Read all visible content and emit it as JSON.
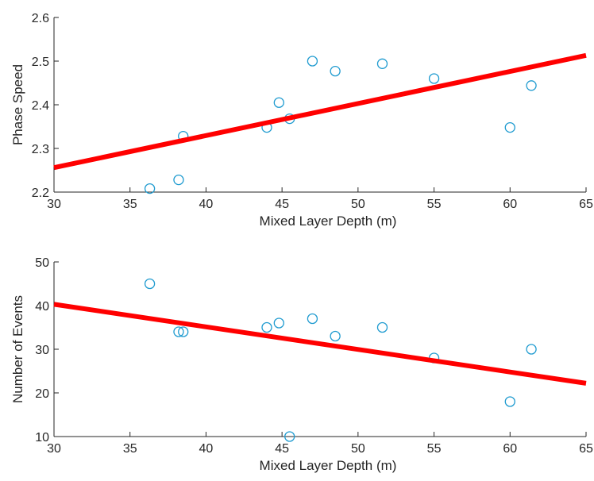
{
  "colors": {
    "marker": "#1f9bd0",
    "fit_line": "#ff0000",
    "axis": "#262626",
    "background": "#ffffff"
  },
  "chart_data": [
    {
      "type": "scatter",
      "xlabel": "Mixed Layer Depth (m)",
      "ylabel": "Phase Speed",
      "xlim": [
        30,
        65
      ],
      "ylim": [
        2.2,
        2.6
      ],
      "xticks": [
        30,
        35,
        40,
        45,
        50,
        55,
        60,
        65
      ],
      "yticks": [
        2.2,
        2.3,
        2.4,
        2.5,
        2.6
      ],
      "ytick_labels": [
        "2.2",
        "2.3",
        "2.4",
        "2.5",
        "2.6"
      ],
      "grid": false,
      "points": [
        {
          "x": 36.3,
          "y": 2.208
        },
        {
          "x": 38.2,
          "y": 2.228
        },
        {
          "x": 38.5,
          "y": 2.328
        },
        {
          "x": 44.0,
          "y": 2.348
        },
        {
          "x": 44.8,
          "y": 2.405
        },
        {
          "x": 45.5,
          "y": 2.368
        },
        {
          "x": 47.0,
          "y": 2.5
        },
        {
          "x": 48.5,
          "y": 2.477
        },
        {
          "x": 51.6,
          "y": 2.494
        },
        {
          "x": 55.0,
          "y": 2.46
        },
        {
          "x": 60.0,
          "y": 2.348
        },
        {
          "x": 61.4,
          "y": 2.444
        }
      ],
      "fit_line": {
        "x": [
          30,
          65
        ],
        "y": [
          2.256,
          2.513
        ]
      }
    },
    {
      "type": "scatter",
      "xlabel": "Mixed Layer Depth (m)",
      "ylabel": "Number of Events",
      "xlim": [
        30,
        65
      ],
      "ylim": [
        10,
        50
      ],
      "xticks": [
        30,
        35,
        40,
        45,
        50,
        55,
        60,
        65
      ],
      "yticks": [
        10,
        20,
        30,
        40,
        50
      ],
      "ytick_labels": [
        "10",
        "20",
        "30",
        "40",
        "50"
      ],
      "grid": false,
      "points": [
        {
          "x": 36.3,
          "y": 45
        },
        {
          "x": 38.2,
          "y": 34
        },
        {
          "x": 38.5,
          "y": 34
        },
        {
          "x": 44.0,
          "y": 35
        },
        {
          "x": 44.8,
          "y": 36
        },
        {
          "x": 45.5,
          "y": 10
        },
        {
          "x": 47.0,
          "y": 37
        },
        {
          "x": 48.5,
          "y": 33
        },
        {
          "x": 51.6,
          "y": 35
        },
        {
          "x": 55.0,
          "y": 28
        },
        {
          "x": 60.0,
          "y": 18
        },
        {
          "x": 61.4,
          "y": 30
        }
      ],
      "fit_line": {
        "x": [
          30,
          65
        ],
        "y": [
          40.3,
          22.2
        ]
      }
    }
  ]
}
